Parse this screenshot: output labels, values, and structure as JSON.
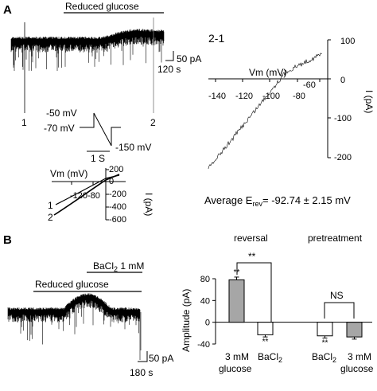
{
  "panel_a": {
    "letter": "A",
    "bar_label": "Reduced glucose",
    "scale_current": "50 pA",
    "scale_time": "120 s",
    "marker_1": "1",
    "marker_2": "2",
    "protocol": {
      "v_hold": "-50 mV",
      "v_start": "-70 mV",
      "v_end": "-150 mV",
      "time_scale": "1 S"
    },
    "small_iv": {
      "xlabel": "Vm (mV)",
      "ylabel": "I (pA)",
      "x_ticks": [
        "-120",
        "-80"
      ],
      "y_ticks": [
        "200",
        "0",
        "-200",
        "-400",
        "-600"
      ],
      "curve_1": "1",
      "curve_2": "2"
    },
    "diff_iv": {
      "title": "2-1",
      "xlabel": "Vm (mV)",
      "ylabel": "I (pA)",
      "x_ticks": [
        "-140",
        "-120",
        "-100",
        "-80",
        "-60"
      ],
      "y_ticks": [
        "100",
        "0",
        "-100",
        "-200"
      ]
    },
    "avg_prefix": "Average E",
    "avg_sub": "rev",
    "avg_value": "= -92.74 ± 2.15 mV"
  },
  "panel_b": {
    "letter": "B",
    "bar_glucose": "Reduced glucose",
    "bar_ba_prefix": "BaCl",
    "bar_ba_sub": "2",
    "bar_ba_suffix": " 1 mM",
    "scale_current": "50 pA",
    "scale_time": "180 s",
    "group_reversal": "reversal",
    "group_pretreatment": "pretreatment",
    "sig_reversal": "**",
    "sig_pretreatment": "NS"
  },
  "chart_data": {
    "type": "bar",
    "ylabel": "Amplitude (pA)",
    "ylim": [
      -40,
      80
    ],
    "y_ticks": [
      80,
      40,
      0,
      -40
    ],
    "bars": [
      {
        "group": "reversal",
        "label_line1": "3 mM",
        "label_line2": "glucose",
        "value": 78,
        "error": 5,
        "color": "#a6a6a6",
        "star": "**"
      },
      {
        "group": "reversal",
        "label_line1": "BaCl",
        "label_sub": "2",
        "value": -23,
        "error": 4,
        "color": "#ffffff",
        "star": "**"
      },
      {
        "group": "pretreatment",
        "label_line1": "BaCl",
        "label_sub": "2",
        "value": -25,
        "error": 4,
        "color": "#ffffff",
        "star": "**"
      },
      {
        "group": "pretreatment",
        "label_line1": "3 mM",
        "label_line2": "glucose",
        "value": -27,
        "error": 4,
        "color": "#a6a6a6",
        "star": ""
      }
    ]
  }
}
